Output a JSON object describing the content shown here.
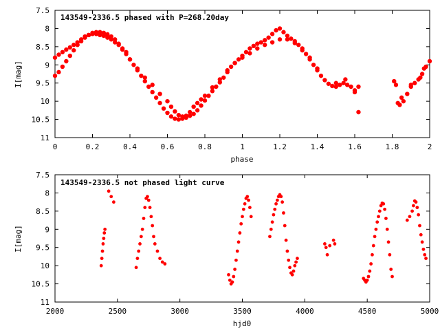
{
  "chart_data": [
    {
      "type": "scatter",
      "title": "143549-2336.5 phased with P=268.20day",
      "xlabel": "phase",
      "ylabel": "I[mag]",
      "xlim": [
        0,
        2
      ],
      "ylim": [
        7.5,
        11
      ],
      "y_inverted": true,
      "xticks": [
        0,
        0.2,
        0.4,
        0.6,
        0.8,
        1,
        1.2,
        1.4,
        1.6,
        1.8,
        2
      ],
      "yticks": [
        7.5,
        8,
        8.5,
        9,
        9.5,
        10,
        10.5,
        11
      ],
      "xtick_labels": [
        "0",
        "0.2",
        "0.4",
        "0.6",
        "0.8",
        "1",
        "1.2",
        "1.4",
        "1.6",
        "1.8",
        "2"
      ],
      "ytick_labels": [
        "7.5",
        "8",
        "8.5",
        "9",
        "9.5",
        "10",
        "10.5",
        "11"
      ],
      "grid": false,
      "marker_color": "#ff0000",
      "series": [
        {
          "x": [
            0.0,
            0.02,
            0.04,
            0.06,
            0.08,
            0.1,
            0.12,
            0.14,
            0.16,
            0.18,
            0.2,
            0.22,
            0.24,
            0.26,
            0.28,
            0.3,
            0.32,
            0.34,
            0.36,
            0.38,
            0.4,
            0.42,
            0.44,
            0.46,
            0.48,
            0.5,
            0.52,
            0.54,
            0.56,
            0.58,
            0.6,
            0.62,
            0.64,
            0.66,
            0.68,
            0.7,
            0.72,
            0.74,
            0.76,
            0.78,
            0.8,
            0.82,
            0.84,
            0.86,
            0.88,
            0.9,
            0.92,
            0.94,
            0.96,
            0.98,
            1.0,
            1.02,
            1.04,
            1.06,
            1.08,
            1.1,
            1.12,
            1.14,
            1.16,
            1.18,
            1.2,
            1.22,
            1.24,
            1.26,
            1.28,
            1.3,
            1.32,
            1.34,
            1.36,
            1.38,
            1.4,
            1.42,
            1.44,
            1.46,
            1.48,
            1.5,
            1.52,
            1.54,
            1.56,
            1.58,
            1.6,
            1.62,
            1.81,
            1.82,
            1.84,
            1.86,
            1.88,
            1.9,
            1.92,
            1.94,
            1.96,
            1.98,
            2.0,
            0.0,
            0.02,
            0.04,
            0.06,
            0.08,
            0.1,
            0.12,
            0.14,
            0.16,
            0.18,
            0.2,
            0.22,
            0.24,
            0.26,
            0.28,
            0.3,
            0.32,
            0.34,
            0.36,
            0.38,
            0.4,
            0.44,
            0.48,
            0.52,
            0.56,
            0.6,
            0.62,
            0.64,
            0.66,
            0.68,
            0.7,
            0.72,
            0.74,
            0.76,
            0.78,
            0.8,
            0.84,
            0.88,
            0.92,
            0.96,
            1.0,
            1.04,
            1.08,
            1.12,
            1.16,
            1.2,
            1.24,
            1.28,
            1.32,
            1.36,
            1.4,
            1.5,
            1.55,
            1.6,
            1.62,
            1.83,
            1.85,
            1.9,
            1.95,
            1.97
          ],
          "y": [
            9.3,
            9.2,
            9.05,
            8.9,
            8.75,
            8.6,
            8.45,
            8.35,
            8.25,
            8.18,
            8.12,
            8.1,
            8.1,
            8.12,
            8.16,
            8.22,
            8.3,
            8.42,
            8.55,
            8.7,
            8.85,
            9.0,
            9.15,
            9.3,
            9.45,
            9.6,
            9.75,
            9.9,
            10.05,
            10.2,
            10.32,
            10.42,
            10.48,
            10.5,
            10.48,
            10.45,
            10.4,
            10.35,
            10.25,
            10.12,
            9.98,
            9.85,
            9.72,
            9.6,
            9.48,
            9.35,
            9.2,
            9.05,
            8.95,
            8.85,
            8.75,
            8.65,
            8.55,
            8.48,
            8.42,
            8.38,
            8.32,
            8.25,
            8.15,
            8.05,
            8.0,
            8.1,
            8.2,
            8.28,
            8.35,
            8.45,
            8.55,
            8.7,
            8.85,
            9.0,
            9.15,
            9.3,
            9.42,
            9.52,
            9.58,
            9.6,
            9.55,
            9.5,
            9.55,
            9.6,
            9.75,
            10.3,
            9.45,
            9.55,
            10.1,
            10.0,
            9.8,
            9.6,
            9.5,
            9.4,
            9.25,
            9.05,
            8.9,
            8.8,
            8.72,
            8.65,
            8.58,
            8.52,
            8.45,
            8.38,
            8.3,
            8.22,
            8.18,
            8.15,
            8.15,
            8.18,
            8.2,
            8.25,
            8.3,
            8.38,
            8.45,
            8.58,
            8.65,
            8.85,
            9.1,
            9.35,
            9.55,
            9.8,
            10.0,
            10.15,
            10.28,
            10.38,
            10.42,
            10.4,
            10.3,
            10.15,
            10.05,
            9.95,
            9.85,
            9.62,
            9.4,
            9.15,
            8.95,
            8.8,
            8.68,
            8.55,
            8.45,
            8.38,
            8.3,
            8.3,
            8.4,
            8.6,
            8.8,
            9.1,
            9.5,
            9.4,
            9.7,
            9.6,
            10.05,
            9.9,
            9.55,
            9.35,
            9.1
          ]
        }
      ]
    },
    {
      "type": "scatter",
      "title": "143549-2336.5 not phased light curve",
      "xlabel": "hjd0",
      "ylabel": "I[mag]",
      "xlim": [
        2000,
        5000
      ],
      "ylim": [
        7.5,
        11
      ],
      "y_inverted": true,
      "xticks": [
        2000,
        2500,
        3000,
        3500,
        4000,
        4500,
        5000
      ],
      "yticks": [
        7.5,
        8,
        8.5,
        9,
        9.5,
        10,
        10.5,
        11
      ],
      "xtick_labels": [
        "2000",
        "2500",
        "3000",
        "3500",
        "4000",
        "4500",
        "5000"
      ],
      "ytick_labels": [
        "7.5",
        "8",
        "8.5",
        "9",
        "9.5",
        "10",
        "10.5",
        "11"
      ],
      "grid": false,
      "marker_color": "#ff0000",
      "series": [
        {
          "x": [
            2370,
            2375,
            2380,
            2385,
            2390,
            2395,
            2400,
            2430,
            2450,
            2470,
            2650,
            2660,
            2670,
            2680,
            2690,
            2700,
            2710,
            2720,
            2730,
            2740,
            2750,
            2760,
            2770,
            2780,
            2790,
            2800,
            2820,
            2840,
            2860,
            2880,
            3390,
            3400,
            3410,
            3420,
            3430,
            3440,
            3450,
            3460,
            3470,
            3480,
            3490,
            3500,
            3510,
            3520,
            3530,
            3540,
            3550,
            3560,
            3570,
            3720,
            3730,
            3740,
            3750,
            3760,
            3770,
            3780,
            3790,
            3800,
            3810,
            3820,
            3830,
            3840,
            3850,
            3860,
            3870,
            3880,
            3890,
            3900,
            3910,
            3920,
            3930,
            3940,
            4160,
            4170,
            4180,
            4200,
            4230,
            4240,
            4470,
            4480,
            4490,
            4500,
            4510,
            4520,
            4530,
            4540,
            4550,
            4560,
            4570,
            4580,
            4590,
            4600,
            4610,
            4620,
            4630,
            4640,
            4650,
            4660,
            4670,
            4680,
            4690,
            4700,
            4820,
            4840,
            4860,
            4870,
            4880,
            4890,
            4900,
            4910,
            4920,
            4930,
            4940,
            4950,
            4960,
            4970
          ],
          "y": [
            10.0,
            9.8,
            9.6,
            9.4,
            9.25,
            9.1,
            9.0,
            7.95,
            8.1,
            8.25,
            10.05,
            9.8,
            9.6,
            9.4,
            9.2,
            9.0,
            8.7,
            8.4,
            8.15,
            8.1,
            8.2,
            8.4,
            8.65,
            8.9,
            9.2,
            9.4,
            9.6,
            9.8,
            9.9,
            9.95,
            10.25,
            10.4,
            10.5,
            10.45,
            10.3,
            10.1,
            9.85,
            9.6,
            9.35,
            9.1,
            8.85,
            8.65,
            8.45,
            8.3,
            8.15,
            8.1,
            8.2,
            8.4,
            8.65,
            9.2,
            9.0,
            8.8,
            8.6,
            8.45,
            8.3,
            8.2,
            8.1,
            8.05,
            8.1,
            8.25,
            8.55,
            8.9,
            9.3,
            9.6,
            9.85,
            10.05,
            10.2,
            10.25,
            10.15,
            10.0,
            9.9,
            9.8,
            9.4,
            9.5,
            9.7,
            9.45,
            9.3,
            9.4,
            10.35,
            10.4,
            10.45,
            10.4,
            10.3,
            10.15,
            9.95,
            9.7,
            9.45,
            9.2,
            9.0,
            8.8,
            8.65,
            8.5,
            8.35,
            8.28,
            8.3,
            8.45,
            8.7,
            9.0,
            9.35,
            9.7,
            10.1,
            10.3,
            8.75,
            8.65,
            8.5,
            8.35,
            8.22,
            8.25,
            8.4,
            8.6,
            8.9,
            9.15,
            9.35,
            9.55,
            9.7,
            9.8
          ]
        }
      ]
    }
  ]
}
